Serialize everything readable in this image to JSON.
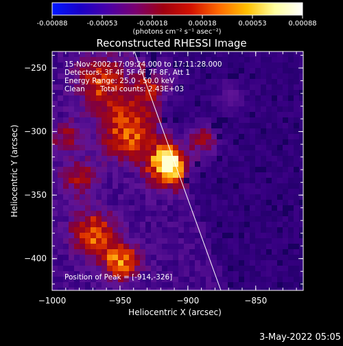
{
  "colorbar": {
    "ticks": [
      "-0.00088",
      "-0.00053",
      "-0.00018",
      "0.00018",
      "0.00053",
      "0.00088"
    ],
    "unit_label": "(photons cm⁻² s⁻¹ asec⁻²)",
    "colors": [
      "#0018ff",
      "#1a00c8",
      "#4a00a8",
      "#7a0070",
      "#a00010",
      "#d21200",
      "#ff6a00",
      "#ffc000",
      "#ffffa0",
      "#ffffff"
    ]
  },
  "plot": {
    "title": "Reconstructed RHESSI Image",
    "xlabel": "Heliocentric X (arcsec)",
    "ylabel": "Heliocentric Y (arcsec)",
    "xticks": [
      "−1000",
      "−950",
      "−900",
      "−850"
    ],
    "yticks": [
      "−250",
      "−300",
      "−350",
      "−400"
    ],
    "xlim": [
      -1000,
      -815
    ],
    "ylim": [
      -425,
      -237
    ]
  },
  "annotations": {
    "time_range": "15-Nov-2002 17:09:24.000 to 17:11:28.000",
    "detectors": "Detectors: 3F 4F 5F 6F 7F 8F, Att 1",
    "energy": "Energy Range: 25.0 - 50.0 keV",
    "method": "Clean",
    "counts": "Total counts: 2.43E+03",
    "peak": "Position of Peak = [-914,-326]"
  },
  "footer": {
    "date": "3-May-2022 05:05"
  }
}
